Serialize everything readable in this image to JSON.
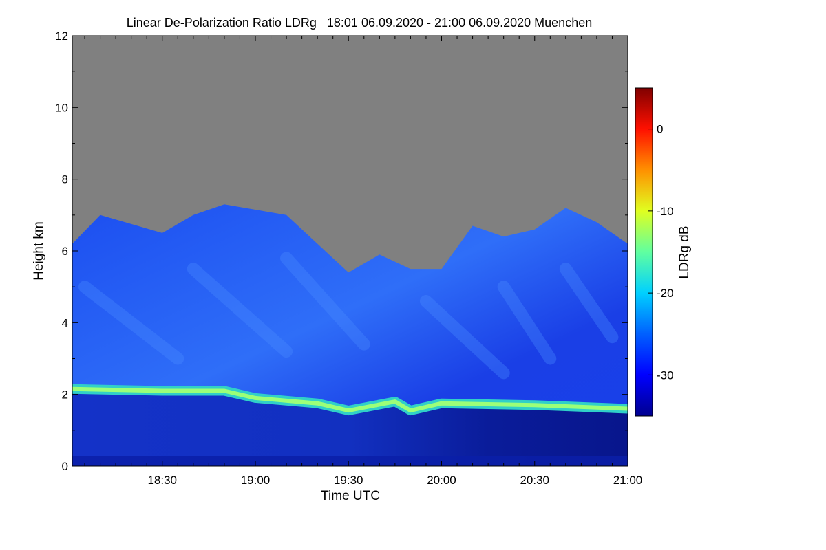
{
  "chart_data": {
    "type": "heatmap",
    "title": "Linear De-Polarization Ratio LDRg   18:01 06.09.2020 - 21:00 06.09.2020 Muenchen",
    "xlabel": "Time UTC",
    "ylabel": "Height km",
    "x_ticks": [
      "18:30",
      "19:00",
      "19:30",
      "20:00",
      "20:30",
      "21:00"
    ],
    "y_ticks": [
      0,
      2,
      4,
      6,
      8,
      10,
      12
    ],
    "x_range": [
      "18:01",
      "21:00"
    ],
    "ylim": [
      0,
      12
    ],
    "colorbar": {
      "label": "LDRg dB",
      "range": [
        -35,
        5
      ],
      "ticks": [
        0,
        -10,
        -20,
        -30
      ],
      "colormap": [
        "#00008f",
        "#0000ff",
        "#0080ff",
        "#00ffff",
        "#80ff80",
        "#ffff00",
        "#ff8000",
        "#ff0000",
        "#800000"
      ]
    },
    "no_data_color": "#808080",
    "features": {
      "cloud_top_km": [
        {
          "time": "18:01",
          "height": 6.2
        },
        {
          "time": "18:10",
          "height": 7.0
        },
        {
          "time": "18:30",
          "height": 6.5
        },
        {
          "time": "18:40",
          "height": 7.0
        },
        {
          "time": "18:50",
          "height": 7.3
        },
        {
          "time": "19:10",
          "height": 7.0
        },
        {
          "time": "19:20",
          "height": 6.2
        },
        {
          "time": "19:30",
          "height": 5.4
        },
        {
          "time": "19:40",
          "height": 5.9
        },
        {
          "time": "19:50",
          "height": 5.5
        },
        {
          "time": "20:00",
          "height": 5.5
        },
        {
          "time": "20:10",
          "height": 6.7
        },
        {
          "time": "20:20",
          "height": 6.4
        },
        {
          "time": "20:30",
          "height": 6.6
        },
        {
          "time": "20:40",
          "height": 7.2
        },
        {
          "time": "20:50",
          "height": 6.8
        },
        {
          "time": "21:00",
          "height": 6.2
        }
      ],
      "boundary_layer_top_km": [
        {
          "time": "18:01",
          "height": 2.15
        },
        {
          "time": "18:30",
          "height": 2.1
        },
        {
          "time": "18:50",
          "height": 2.1
        },
        {
          "time": "19:00",
          "height": 1.9
        },
        {
          "time": "19:20",
          "height": 1.75
        },
        {
          "time": "19:30",
          "height": 1.55
        },
        {
          "time": "19:45",
          "height": 1.8
        },
        {
          "time": "19:50",
          "height": 1.55
        },
        {
          "time": "20:00",
          "height": 1.75
        },
        {
          "time": "20:30",
          "height": 1.7
        },
        {
          "time": "21:00",
          "height": 1.6
        }
      ]
    }
  }
}
